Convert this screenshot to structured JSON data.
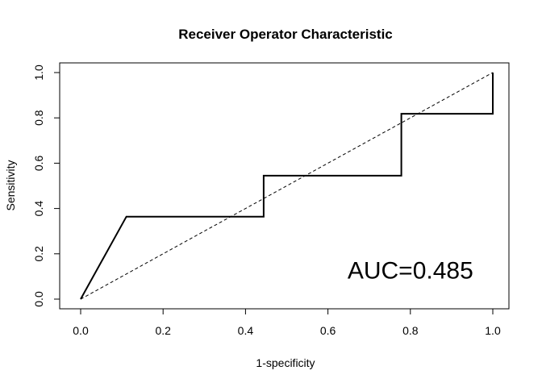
{
  "chart_data": {
    "type": "line",
    "title": "Receiver Operator Characteristic",
    "xlabel": "1-specificity",
    "ylabel": "Sensitivity",
    "xlim": [
      0,
      1
    ],
    "ylim": [
      0,
      1
    ],
    "x_ticks": [
      "0.0",
      "0.2",
      "0.4",
      "0.6",
      "0.8",
      "1.0"
    ],
    "y_ticks": [
      "0.0",
      "0.2",
      "0.4",
      "0.6",
      "0.8",
      "1.0"
    ],
    "grid": false,
    "series": [
      {
        "style": "solid",
        "color": "#000000",
        "points": [
          [
            0,
            0
          ],
          [
            0.111,
            0.364
          ],
          [
            0.444,
            0.364
          ],
          [
            0.444,
            0.545
          ],
          [
            0.778,
            0.545
          ],
          [
            0.778,
            0.818
          ],
          [
            1.0,
            0.818
          ],
          [
            1.0,
            1.0
          ]
        ]
      },
      {
        "style": "dashed",
        "color": "#000000",
        "points": [
          [
            0,
            0
          ],
          [
            1,
            1
          ]
        ]
      }
    ],
    "annotation": {
      "text": "AUC=0.485",
      "x": 0.8,
      "y": 0.09
    }
  }
}
